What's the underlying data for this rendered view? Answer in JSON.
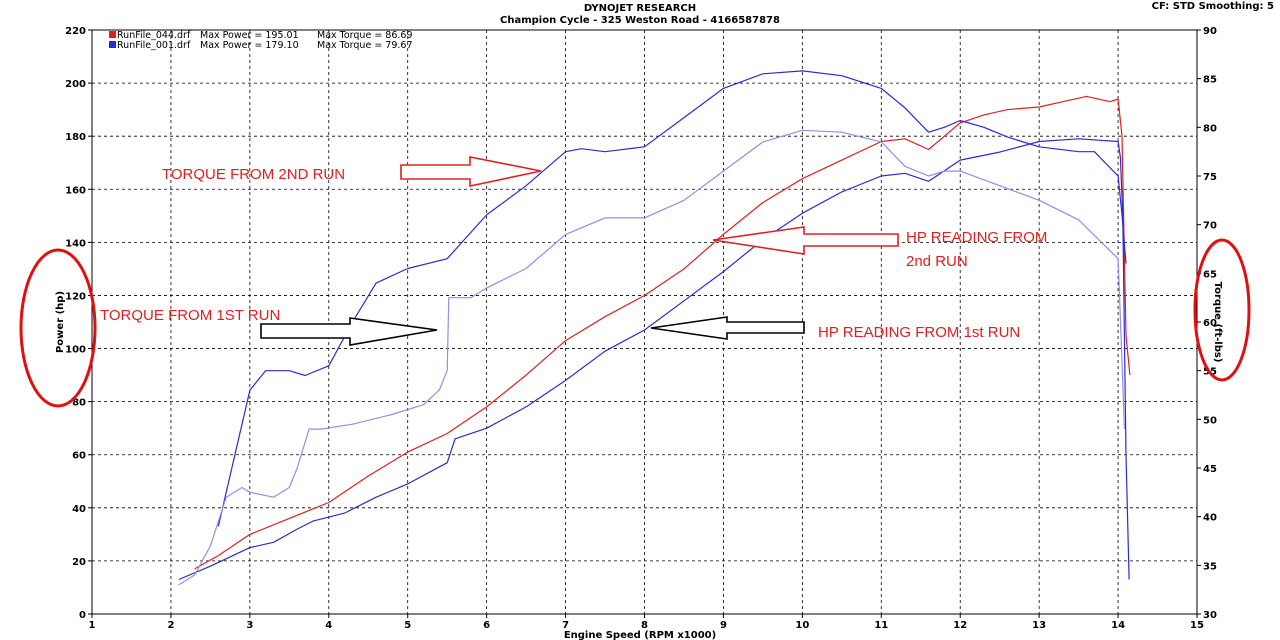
{
  "header": {
    "title": "DYNOJET RESEARCH",
    "subtitle": "Champion Cycle - 325 Weston Road - 4166587878",
    "settings": "CF: STD  Smoothing: 5"
  },
  "legend": [
    {
      "file": "RunFile_044.drf",
      "max_power_label": "Max Power = 195.01",
      "max_torque_label": "Max Torque = 86.69",
      "color": "#e02020"
    },
    {
      "file": "RunFile_001.drf",
      "max_power_label": "Max Power = 179.10",
      "max_torque_label": "Max Torque = 79.67",
      "color": "#2b2bd6"
    }
  ],
  "annotations": {
    "torque_2nd": "TORQUE FROM 2ND RUN",
    "torque_1st": "TORQUE FROM 1ST RUN",
    "hp_2nd_line1": "HP READING FROM",
    "hp_2nd_line2": "2nd RUN",
    "hp_1st": "HP READING FROM 1st RUN"
  },
  "colors": {
    "run_044": "#e02020",
    "run_001": "#2b2bd6",
    "run_044_torque": "#2b2bd6",
    "run_001_torque": "#8f8fe8",
    "annotation_text": "#e02020",
    "highlight_ellipse": "#e01010"
  },
  "chart_data": {
    "type": "line",
    "title": "DYNOJET RESEARCH",
    "subtitle": "Champion Cycle - 325 Weston Road - 4166587878",
    "xlabel": "Engine Speed (RPM x1000)",
    "ylabel_left": "Power (hp)",
    "ylabel_right": "Torque (ft-lbs)",
    "xlim": [
      1,
      15
    ],
    "ylim_left": [
      0,
      220
    ],
    "ylim_right": [
      30,
      90
    ],
    "xticks": [
      "1",
      "2",
      "3",
      "4",
      "5",
      "6",
      "7",
      "8",
      "9",
      "10",
      "11",
      "12",
      "13",
      "14",
      "15"
    ],
    "yticks_left": [
      "0",
      "20",
      "40",
      "60",
      "80",
      "100",
      "120",
      "140",
      "160",
      "180",
      "200",
      "220"
    ],
    "yticks_right": [
      "30",
      "35",
      "40",
      "45",
      "50",
      "55",
      "60",
      "65",
      "70",
      "75",
      "80",
      "85",
      "90"
    ],
    "grid": true,
    "series": [
      {
        "name": "RunFile_044.drf",
        "quantity": "power",
        "axis": "left",
        "color": "#e02020",
        "x": [
          2.3,
          2.6,
          3.0,
          3.5,
          4.0,
          4.5,
          5.0,
          5.5,
          6.0,
          6.5,
          7.0,
          7.5,
          8.0,
          8.5,
          9.0,
          9.5,
          10.0,
          10.5,
          11.0,
          11.3,
          11.6,
          11.8,
          12.0,
          12.3,
          12.6,
          13.0,
          13.3,
          13.6,
          13.9,
          14.0,
          14.05,
          14.1,
          14.15
        ],
        "y": [
          17,
          22,
          30,
          36,
          42,
          52,
          61,
          68,
          78,
          90,
          103,
          112,
          120,
          130,
          143,
          155,
          164,
          171,
          178,
          179,
          175,
          180,
          185,
          188,
          190,
          191,
          193,
          195,
          193,
          194,
          180,
          105,
          90
        ]
      },
      {
        "name": "RunFile_001.drf",
        "quantity": "power",
        "axis": "left",
        "color": "#2b2bd6",
        "x": [
          2.1,
          2.5,
          3.0,
          3.3,
          3.6,
          3.8,
          4.2,
          4.6,
          5.0,
          5.5,
          5.6,
          6.0,
          6.5,
          7.0,
          7.5,
          8.0,
          8.5,
          9.0,
          9.5,
          10.0,
          10.5,
          11.0,
          11.3,
          11.6,
          11.8,
          12.0,
          12.5,
          13.0,
          13.5,
          14.0,
          14.03,
          14.06,
          14.1,
          14.14
        ],
        "y": [
          13,
          18,
          25,
          27,
          32,
          35,
          38,
          44,
          49,
          57,
          66,
          70,
          78,
          88,
          99,
          107,
          118,
          129,
          141,
          151,
          159,
          165,
          166,
          163,
          167,
          171,
          174,
          178,
          179,
          178,
          172,
          150,
          60,
          13
        ]
      },
      {
        "name": "RunFile_044.drf",
        "quantity": "torque",
        "axis": "right",
        "color": "#2b2bd6",
        "x": [
          2.6,
          2.8,
          3.0,
          3.2,
          3.5,
          3.7,
          4.0,
          4.3,
          4.6,
          5.0,
          5.5,
          6.0,
          6.5,
          7.0,
          7.2,
          7.5,
          8.0,
          8.5,
          9.0,
          9.5,
          10.0,
          10.5,
          11.0,
          11.3,
          11.6,
          11.8,
          12.0,
          12.3,
          12.6,
          13.0,
          13.5,
          13.7,
          14.0,
          14.05,
          14.1
        ],
        "y": [
          39,
          46,
          53,
          55,
          55,
          54.5,
          55.5,
          60,
          64,
          65.5,
          66.5,
          71,
          74,
          77.5,
          77.8,
          77.5,
          78,
          81,
          84,
          85.5,
          85.8,
          85.3,
          84,
          82,
          79.5,
          80,
          80.7,
          80,
          79,
          78,
          77.5,
          77.5,
          75,
          71,
          66
        ]
      },
      {
        "name": "RunFile_001.drf",
        "quantity": "torque",
        "axis": "right",
        "color": "#8f8fe8",
        "x": [
          2.1,
          2.3,
          2.5,
          2.7,
          2.9,
          3.0,
          3.3,
          3.5,
          3.6,
          3.75,
          3.9,
          4.3,
          4.8,
          5.2,
          5.4,
          5.5,
          5.52,
          5.8,
          6.0,
          6.5,
          7.0,
          7.5,
          8.0,
          8.5,
          9.0,
          9.5,
          10.0,
          10.5,
          11.0,
          11.3,
          11.6,
          11.8,
          12.0,
          12.5,
          13.0,
          13.5,
          14.0,
          14.05,
          14.08
        ],
        "y": [
          33,
          34,
          37,
          42,
          43,
          42.5,
          42,
          43,
          45,
          49,
          49,
          49.5,
          50.5,
          51.5,
          53,
          55,
          62.5,
          62.5,
          63.5,
          65.5,
          69,
          70.7,
          70.7,
          72.5,
          75.5,
          78.5,
          79.7,
          79.5,
          78.5,
          76,
          75,
          75.5,
          75.5,
          74,
          72.5,
          70.5,
          66.5,
          56,
          49
        ]
      }
    ]
  }
}
